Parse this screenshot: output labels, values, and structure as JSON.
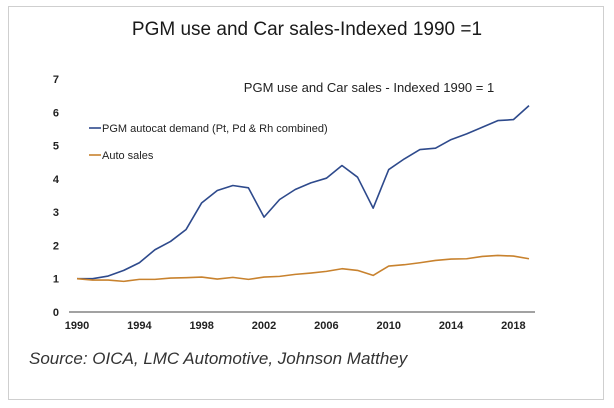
{
  "page": {
    "title": "PGM use and Car sales-Indexed 1990 =1",
    "source": "Source: OICA, LMC Automotive, Johnson Matthey"
  },
  "chart_data": {
    "type": "line",
    "title": "PGM use and Car sales - Indexed 1990 = 1",
    "xlabel": "",
    "ylabel": "",
    "xlim": [
      1990,
      2019
    ],
    "ylim": [
      0,
      7
    ],
    "x_ticks": [
      "1990",
      "1994",
      "1998",
      "2002",
      "2006",
      "2010",
      "2014",
      "2018"
    ],
    "y_ticks": [
      "0",
      "1",
      "2",
      "3",
      "4",
      "5",
      "6",
      "7"
    ],
    "grid": false,
    "legend_position": "top-left",
    "x": [
      1990,
      1991,
      1992,
      1993,
      1994,
      1995,
      1996,
      1997,
      1998,
      1999,
      2000,
      2001,
      2002,
      2003,
      2004,
      2005,
      2006,
      2007,
      2008,
      2009,
      2010,
      2011,
      2012,
      2013,
      2014,
      2015,
      2016,
      2017,
      2018,
      2019
    ],
    "series": [
      {
        "name": "PGM autocat demand (Pt, Pd & Rh combined)",
        "color": "#2e4a8c",
        "values": [
          1.0,
          1.0,
          1.08,
          1.25,
          1.48,
          1.87,
          2.12,
          2.48,
          3.28,
          3.65,
          3.8,
          3.73,
          2.85,
          3.38,
          3.68,
          3.88,
          4.02,
          4.4,
          4.05,
          3.12,
          4.28,
          4.6,
          4.88,
          4.92,
          5.18,
          5.35,
          5.55,
          5.75,
          5.78,
          6.2
        ]
      },
      {
        "name": "Auto sales",
        "color": "#c8822e",
        "values": [
          1.0,
          0.96,
          0.96,
          0.92,
          0.98,
          0.98,
          1.02,
          1.03,
          1.05,
          0.99,
          1.04,
          0.98,
          1.05,
          1.07,
          1.13,
          1.17,
          1.22,
          1.3,
          1.25,
          1.1,
          1.38,
          1.42,
          1.48,
          1.55,
          1.59,
          1.6,
          1.67,
          1.7,
          1.68,
          1.6
        ]
      }
    ]
  }
}
